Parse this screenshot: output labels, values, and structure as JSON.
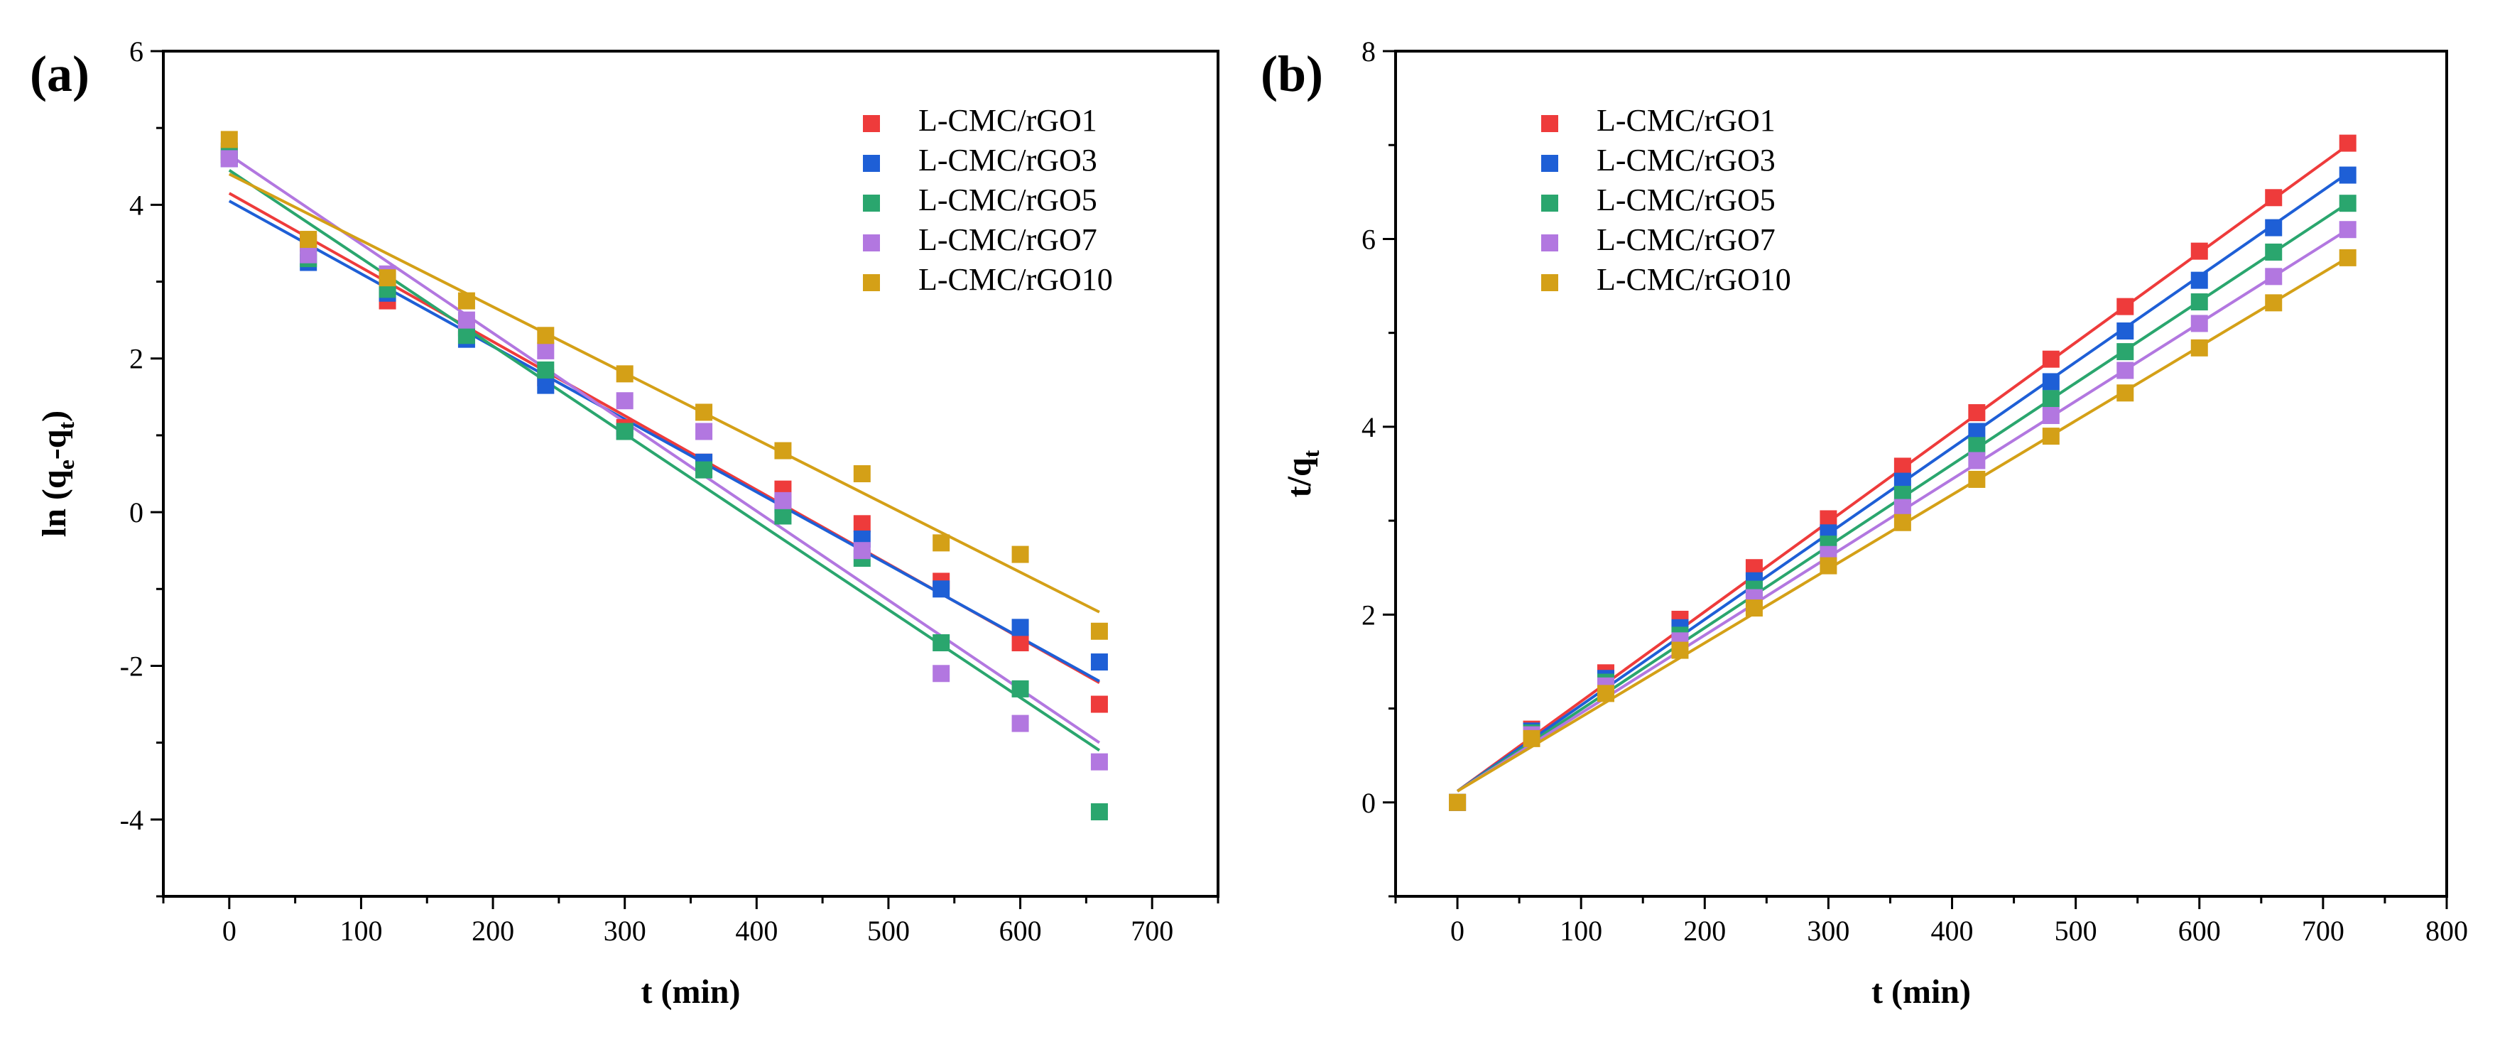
{
  "chart_data": [
    {
      "type": "scatter",
      "panel_label": "(a)",
      "title": "",
      "xlabel": "t (min)",
      "ylabel_base": "ln (q",
      "ylabel_sub1": "e",
      "ylabel_mid": "-q",
      "ylabel_sub2": "t",
      "ylabel_end": ")",
      "xlim": [
        -50,
        750
      ],
      "ylim": [
        -5,
        6
      ],
      "xticks": [
        0,
        100,
        200,
        300,
        400,
        500,
        600,
        700
      ],
      "yticks": [
        -4,
        -2,
        0,
        2,
        4,
        6
      ],
      "legend_position": "top-right",
      "grid": false,
      "x": [
        0,
        60,
        120,
        180,
        240,
        300,
        360,
        420,
        480,
        540,
        600,
        660
      ],
      "series": [
        {
          "name": "L-CMC/rGO1",
          "color": "#ee3b3b",
          "values": [
            4.65,
            3.5,
            2.75,
            2.4,
            1.75,
            1.1,
            0.65,
            0.3,
            -0.15,
            -0.9,
            -1.7,
            -2.5
          ],
          "fit": [
            4.15,
            -2.22
          ]
        },
        {
          "name": "L-CMC/rGO3",
          "color": "#1e5fd6",
          "values": [
            4.6,
            3.25,
            2.85,
            2.25,
            1.65,
            1.05,
            0.65,
            0.1,
            -0.35,
            -1.0,
            -1.5,
            -1.95
          ],
          "fit": [
            4.05,
            -2.2
          ]
        },
        {
          "name": "L-CMC/rGO5",
          "color": "#2aa66e",
          "values": [
            4.7,
            3.3,
            2.9,
            2.3,
            1.85,
            1.05,
            0.55,
            -0.05,
            -0.6,
            -1.7,
            -2.3,
            -3.9
          ],
          "fit": [
            4.45,
            -3.1
          ]
        },
        {
          "name": "L-CMC/rGO7",
          "color": "#b277e0",
          "values": [
            4.6,
            3.35,
            3.1,
            2.5,
            2.1,
            1.45,
            1.05,
            0.15,
            -0.5,
            -2.1,
            -2.75,
            -3.25
          ],
          "fit": [
            4.65,
            -3.0
          ]
        },
        {
          "name": "L-CMC/rGO10",
          "color": "#d4a017",
          "values": [
            4.85,
            3.55,
            3.05,
            2.75,
            2.3,
            1.8,
            1.3,
            0.8,
            0.5,
            -0.4,
            -0.55,
            -1.55
          ],
          "fit": [
            4.4,
            -1.3
          ]
        }
      ]
    },
    {
      "type": "scatter",
      "panel_label": "(b)",
      "title": "",
      "xlabel": "t (min)",
      "ylabel_base": "t/q",
      "ylabel_sub1": "t",
      "xlim": [
        -50,
        800
      ],
      "ylim": [
        -1,
        8
      ],
      "xticks": [
        0,
        100,
        200,
        300,
        400,
        500,
        600,
        700,
        800
      ],
      "yticks": [
        0,
        2,
        4,
        6,
        8
      ],
      "legend_position": "top-left",
      "grid": false,
      "x": [
        0,
        60,
        120,
        180,
        240,
        300,
        360,
        420,
        480,
        540,
        600,
        660,
        720
      ],
      "series": [
        {
          "name": "L-CMC/rGO1",
          "color": "#ee3b3b",
          "values": [
            0,
            0.78,
            1.38,
            1.95,
            2.5,
            3.02,
            3.58,
            4.15,
            4.72,
            5.28,
            5.87,
            6.44,
            7.02
          ],
          "fit": [
            0.12,
            7.0
          ]
        },
        {
          "name": "L-CMC/rGO3",
          "color": "#1e5fd6",
          "values": [
            0,
            0.76,
            1.32,
            1.86,
            2.36,
            2.87,
            3.42,
            3.95,
            4.48,
            5.02,
            5.56,
            6.12,
            6.68
          ],
          "fit": [
            0.12,
            6.7
          ]
        },
        {
          "name": "L-CMC/rGO5",
          "color": "#2aa66e",
          "values": [
            0,
            0.74,
            1.28,
            1.78,
            2.27,
            2.75,
            3.28,
            3.8,
            4.3,
            4.8,
            5.33,
            5.86,
            6.38
          ],
          "fit": [
            0.12,
            6.38
          ]
        },
        {
          "name": "L-CMC/rGO7",
          "color": "#b277e0",
          "values": [
            0,
            0.72,
            1.24,
            1.72,
            2.18,
            2.64,
            3.14,
            3.64,
            4.12,
            4.6,
            5.1,
            5.6,
            6.1
          ],
          "fit": [
            0.12,
            6.1
          ]
        },
        {
          "name": "L-CMC/rGO10",
          "color": "#d4a017",
          "values": [
            0,
            0.68,
            1.16,
            1.62,
            2.07,
            2.52,
            2.98,
            3.44,
            3.9,
            4.36,
            4.84,
            5.32,
            5.8
          ],
          "fit": [
            0.12,
            5.8
          ]
        }
      ]
    }
  ]
}
